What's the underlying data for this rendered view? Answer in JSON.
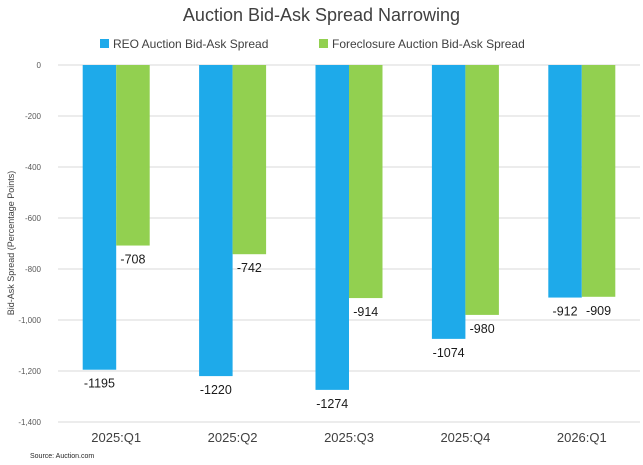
{
  "chart_data": {
    "type": "bar",
    "title": "Auction Bid-Ask Spread Narrowing",
    "xlabel": "",
    "ylabel": "Bid-Ask Spread (Percentage Points)",
    "source": "Source: Auction.com",
    "categories": [
      "2025:Q1",
      "2025:Q2",
      "2025:Q3",
      "2025:Q4",
      "2026:Q1"
    ],
    "series": [
      {
        "name": "REO Auction Bid-Ask Spread",
        "color": "#1eaaea",
        "values": [
          -1195,
          -1220,
          -1274,
          -1074,
          -912
        ]
      },
      {
        "name": "Foreclosure Auction Bid-Ask Spread",
        "color": "#92d050",
        "values": [
          -708,
          -742,
          -914,
          -980,
          -909
        ]
      }
    ],
    "ylim": [
      -1400,
      0
    ],
    "yticks": [
      0,
      -200,
      -400,
      -600,
      -800,
      -1000,
      -1200,
      -1400
    ],
    "ytick_labels": [
      "0",
      "-200",
      "-400",
      "-600",
      "-800",
      "-1,000",
      "-1,200",
      "-1,400"
    ],
    "grid": true,
    "legend_position": "top-center",
    "data_labels": true
  }
}
